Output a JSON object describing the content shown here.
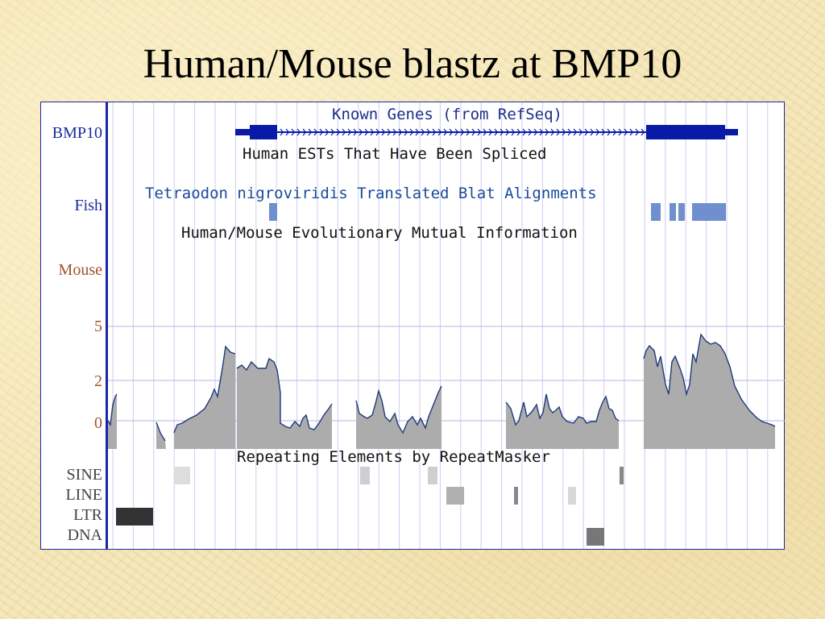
{
  "slide": {
    "title": "Human/Mouse blastz at BMP10"
  },
  "side_labels": {
    "gene": "BMP10",
    "fish": "Fish",
    "mouse": "Mouse",
    "y5": "5",
    "y2": "2",
    "y0": "0",
    "sine": "SINE",
    "line": "LINE",
    "ltr": "LTR",
    "dna": "DNA"
  },
  "tracks": {
    "known_genes": "Known Genes (from RefSeq)",
    "human_ests": "Human ESTs That Have Been Spliced",
    "tetraodon": "Tetraodon nigroviridis Translated Blat Alignments",
    "mutual_info": "Human/Mouse Evolutionary Mutual Information",
    "repeat_masker": "Repeating Elements by RepeatMasker"
  },
  "colors": {
    "gene_blue": "#0a1aa8",
    "fish_blue": "#6f8fcf",
    "track_title_blue": "#1a2e8a",
    "plot_fill": "#acacac",
    "plot_edge": "#1f3a7a",
    "gridline": "#b9b6e8",
    "mouse_label": "#a0522d",
    "gene_label": "#1a2aa0"
  },
  "icons": {
    "strand_arrow": "chevron-right"
  }
}
